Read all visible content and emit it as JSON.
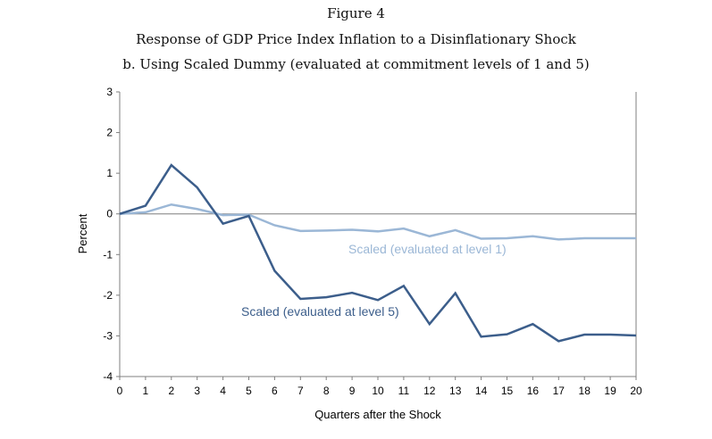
{
  "figure": {
    "label": "Figure 4",
    "title": "Response of GDP Price Index Inflation to a Disinflationary Shock",
    "subtitle": "b. Using Scaled Dummy (evaluated at commitment levels of 1 and 5)"
  },
  "chart_data": {
    "type": "line",
    "xlabel": "Quarters after the Shock",
    "ylabel": "Percent",
    "x": [
      0,
      1,
      2,
      3,
      4,
      5,
      6,
      7,
      8,
      9,
      10,
      11,
      12,
      13,
      14,
      15,
      16,
      17,
      18,
      19,
      20
    ],
    "xlim": [
      0,
      20
    ],
    "ylim": [
      -4,
      3
    ],
    "yticks": [
      3,
      2,
      1,
      0,
      -1,
      -2,
      -3,
      -4
    ],
    "grid": false,
    "series": [
      {
        "name": "Scaled (evaluated at level 1)",
        "color": "#9bb7d6",
        "values": [
          0,
          0.04,
          0.23,
          0.12,
          -0.03,
          -0.02,
          -0.28,
          -0.42,
          -0.41,
          -0.39,
          -0.43,
          -0.36,
          -0.55,
          -0.4,
          -0.61,
          -0.6,
          -0.55,
          -0.63,
          -0.6,
          -0.6,
          -0.6
        ]
      },
      {
        "name": "Scaled (evaluated at level 5)",
        "color": "#3c5e8b",
        "values": [
          0,
          0.2,
          1.2,
          0.65,
          -0.24,
          -0.05,
          -1.4,
          -2.09,
          -2.05,
          -1.94,
          -2.12,
          -1.77,
          -2.71,
          -1.95,
          -3.02,
          -2.96,
          -2.71,
          -3.13,
          -2.97,
          -2.97,
          -2.99
        ]
      }
    ]
  }
}
